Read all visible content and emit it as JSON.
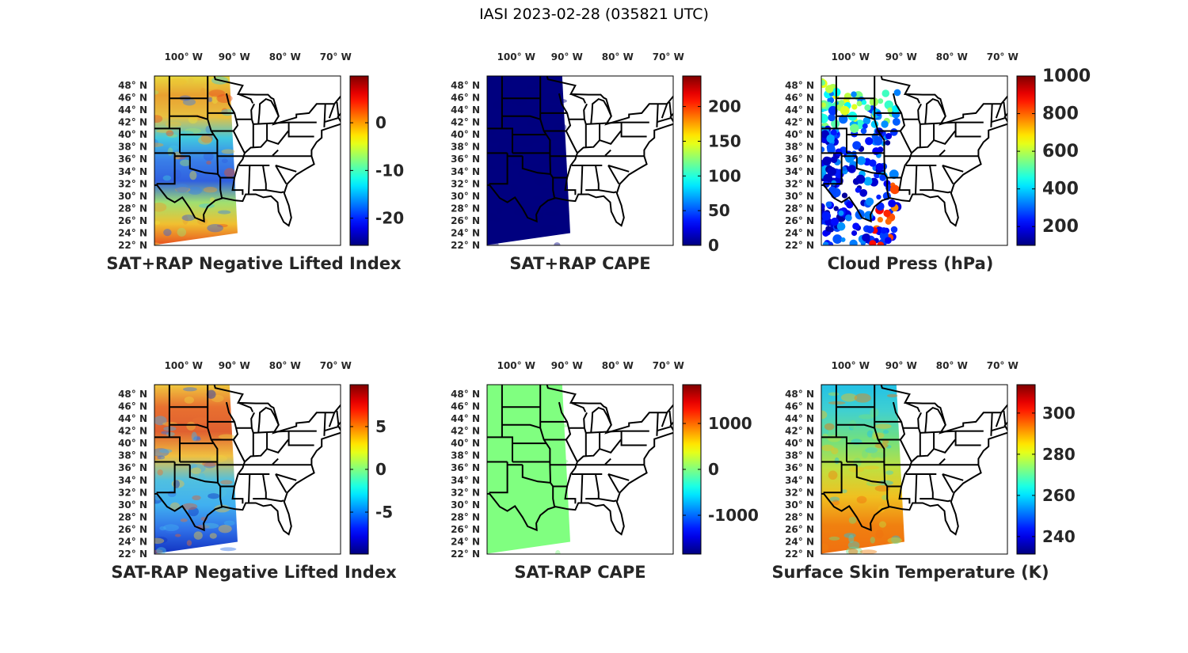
{
  "figure_title": "IASI 2023-02-28 (035821 UTC)",
  "lon_labels": [
    "100° W",
    "90° W",
    "80° W",
    "70° W"
  ],
  "lat_labels": [
    "48° N",
    "46° N",
    "44° N",
    "42° N",
    "40° N",
    "38° N",
    "36° N",
    "34° N",
    "32° N",
    "30° N",
    "28° N",
    "26° N",
    "24° N",
    "22° N"
  ],
  "colormap": "jet",
  "panels": [
    {
      "title": "SAT+RAP Negative Lifted Index",
      "clim": [
        -25.7,
        9.8
      ],
      "ticks": [
        0,
        -10,
        -20
      ],
      "tick_labels": [
        "0",
        "-10",
        "-20"
      ],
      "render": "swath",
      "swath_palette": [
        "#e8e040",
        "#e8a030",
        "#e8c040",
        "#40c8e0",
        "#3a80e8",
        "#3060e0",
        "#a0e070",
        "#f0c030",
        "#e85020"
      ]
    },
    {
      "title": "SAT+RAP CAPE",
      "clim": [
        0,
        244
      ],
      "ticks": [
        200,
        150,
        100,
        50,
        0
      ],
      "tick_labels": [
        "200",
        "150",
        "100",
        "50",
        "0"
      ],
      "render": "swath",
      "swath_palette": [
        "#00007f",
        "#00007f"
      ]
    },
    {
      "title": "Cloud Press (hPa)",
      "clim": [
        100,
        1000
      ],
      "ticks": [
        1000,
        800,
        600,
        400,
        200
      ],
      "tick_labels": [
        "1000",
        "800",
        "600",
        "400",
        "200"
      ],
      "render": "scatter",
      "swath_palette": [
        "#2060f0",
        "#40c0e0",
        "#f0e040",
        "#1020e0",
        "#f0a020"
      ]
    },
    {
      "title": "SAT-RAP Negative Lifted Index",
      "clim": [
        -9.9,
        9.9
      ],
      "ticks": [
        5,
        0,
        -5
      ],
      "tick_labels": [
        "5",
        "0",
        "-5"
      ],
      "render": "swath",
      "swath_palette": [
        "#f0d040",
        "#e87030",
        "#e06030",
        "#f0c040",
        "#50c0e0",
        "#40b0f0",
        "#3070e8",
        "#1030c0"
      ]
    },
    {
      "title": "SAT-RAP CAPE",
      "clim": [
        -1845,
        1845
      ],
      "ticks": [
        1000,
        0,
        -1000
      ],
      "tick_labels": [
        "1000",
        "0",
        "-1000"
      ],
      "render": "swath",
      "swath_palette": [
        "#80ff80",
        "#80ff80"
      ]
    },
    {
      "title": "Surface Skin Temperature (K)",
      "clim": [
        231.5,
        313.8
      ],
      "ticks": [
        300,
        280,
        260,
        240
      ],
      "tick_labels": [
        "300",
        "280",
        "260",
        "240"
      ],
      "render": "swath",
      "swath_palette": [
        "#20c0e8",
        "#40d0d0",
        "#70e080",
        "#c0e040",
        "#f0c020",
        "#f08010",
        "#f07010"
      ]
    }
  ]
}
